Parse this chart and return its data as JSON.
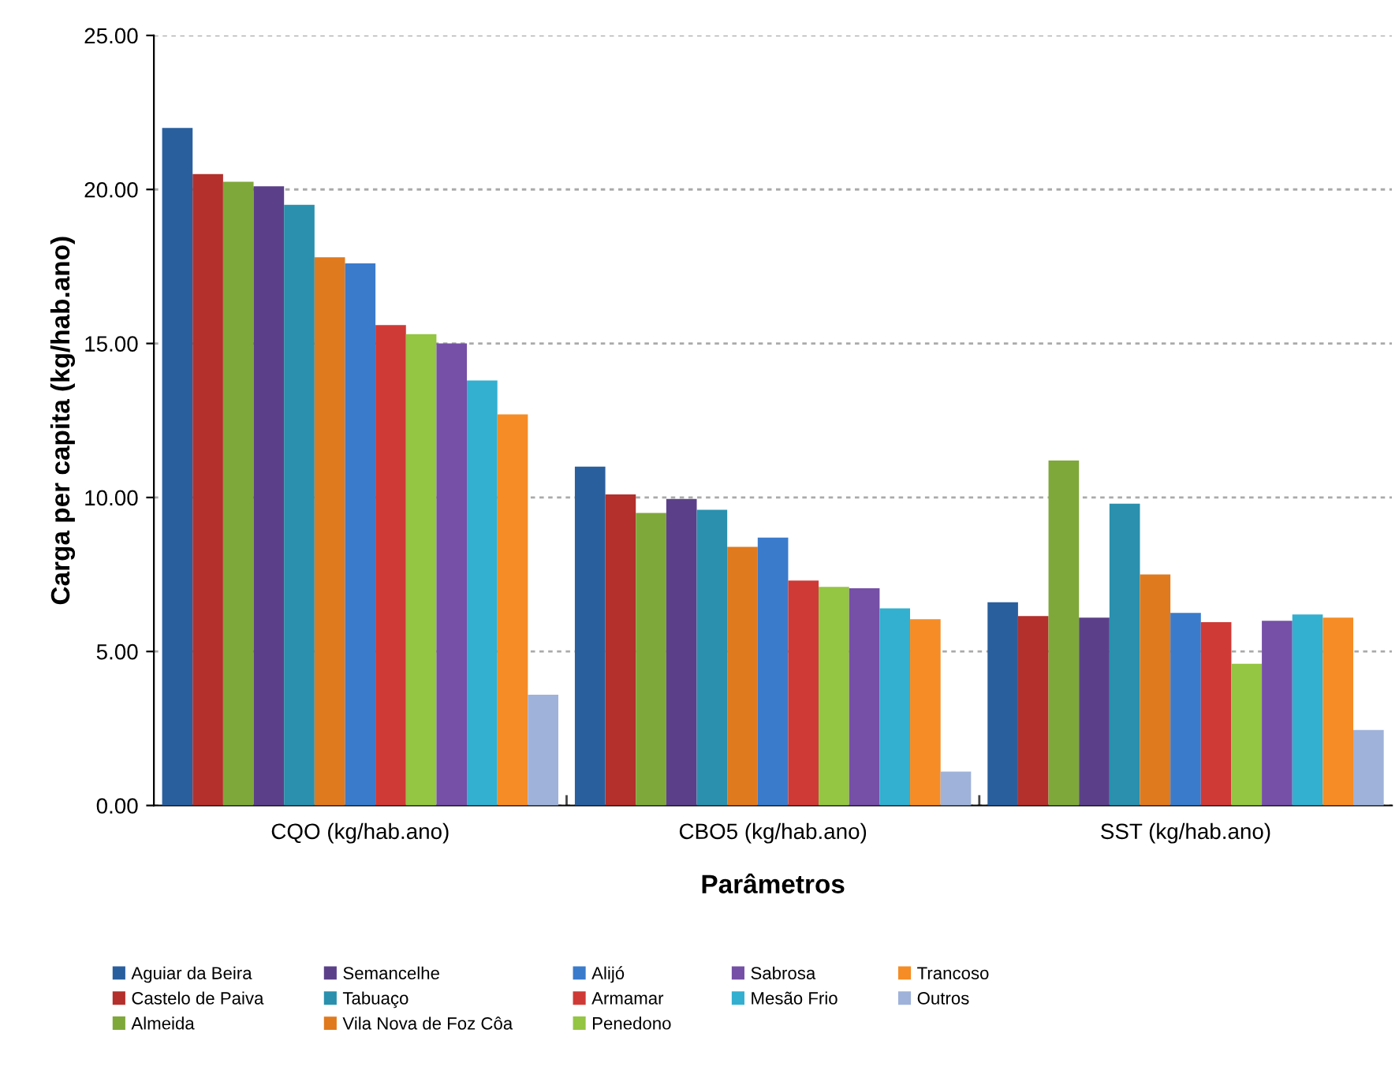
{
  "chart_data": {
    "type": "bar",
    "xlabel": "Parâmetros",
    "ylabel": "Carga per capita (kg/hab.ano)",
    "categories": [
      "CQO (kg/hab.ano)",
      "CBO5 (kg/hab.ano)",
      "SST (kg/hab.ano)"
    ],
    "series": [
      {
        "name": "Aguiar da Beira",
        "color": "#2a5f9e",
        "values": [
          22.0,
          11.0,
          6.6
        ]
      },
      {
        "name": "Castelo de Paiva",
        "color": "#b3302c",
        "values": [
          20.5,
          10.1,
          6.15
        ]
      },
      {
        "name": "Almeida",
        "color": "#7fa83a",
        "values": [
          20.25,
          9.5,
          11.2
        ]
      },
      {
        "name": "Semancelhe",
        "color": "#5b4089",
        "values": [
          20.1,
          9.95,
          6.1
        ]
      },
      {
        "name": "Tabuaço",
        "color": "#2a90ad",
        "values": [
          19.5,
          9.6,
          9.8
        ]
      },
      {
        "name": "Vila Nova de Foz Côa",
        "color": "#e07a1e",
        "values": [
          17.8,
          8.4,
          7.5
        ]
      },
      {
        "name": "Alijó",
        "color": "#3a7bcc",
        "values": [
          17.6,
          8.7,
          6.25
        ]
      },
      {
        "name": "Armamar",
        "color": "#cf3a36",
        "values": [
          15.6,
          7.3,
          5.95
        ]
      },
      {
        "name": "Penedono",
        "color": "#94c543",
        "values": [
          15.3,
          7.1,
          4.6
        ]
      },
      {
        "name": "Sabrosa",
        "color": "#7550a6",
        "values": [
          15.0,
          7.05,
          6.0
        ]
      },
      {
        "name": "Mesão Frio",
        "color": "#33afd0",
        "values": [
          13.8,
          6.4,
          6.2
        ]
      },
      {
        "name": "Trancoso",
        "color": "#f58c25",
        "values": [
          12.7,
          6.05,
          6.1
        ]
      },
      {
        "name": "Outros",
        "color": "#9fb2d9",
        "values": [
          3.6,
          1.1,
          2.45
        ]
      }
    ],
    "ylim": [
      0,
      25
    ],
    "yticks": [
      {
        "value": 0,
        "label": "0.00"
      },
      {
        "value": 5,
        "label": "5.00"
      },
      {
        "value": 10,
        "label": "10.00"
      },
      {
        "value": 15,
        "label": "15.00"
      },
      {
        "value": 20,
        "label": "20.00"
      },
      {
        "value": 25,
        "label": "25.00"
      }
    ],
    "grid": "y",
    "legend": "bottom"
  }
}
